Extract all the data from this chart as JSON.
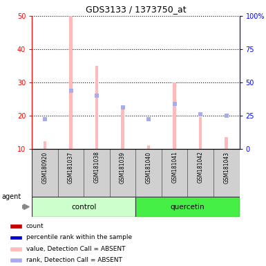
{
  "title": "GDS3133 / 1373750_at",
  "samples": [
    "GSM180920",
    "GSM181037",
    "GSM181038",
    "GSM181039",
    "GSM181040",
    "GSM181041",
    "GSM181042",
    "GSM181043"
  ],
  "groups": [
    "control",
    "control",
    "control",
    "control",
    "quercetin",
    "quercetin",
    "quercetin",
    "quercetin"
  ],
  "count_values": [
    12.3,
    50.0,
    35.0,
    22.0,
    11.0,
    30.0,
    19.5,
    13.5
  ],
  "rank_values": [
    19.0,
    27.5,
    26.0,
    22.5,
    19.0,
    23.5,
    20.5,
    20.0
  ],
  "ylim_left": [
    10,
    50
  ],
  "ylim_right": [
    0,
    100
  ],
  "yticks_left": [
    10,
    20,
    30,
    40,
    50
  ],
  "yticks_right": [
    0,
    25,
    50,
    75,
    100
  ],
  "ytick_labels_left": [
    "10",
    "20",
    "30",
    "40",
    "50"
  ],
  "ytick_labels_right": [
    "0",
    "25",
    "50",
    "75",
    "100%"
  ],
  "bar_color": "#ffbbbb",
  "rank_color": "#aaaaee",
  "control_color_light": "#ccffcc",
  "quercetin_color": "#44ee44",
  "group_label_control": "control",
  "group_label_quercetin": "quercetin",
  "agent_label": "agent",
  "legend_items": [
    {
      "color": "#cc0000",
      "marker": "s",
      "label": "count"
    },
    {
      "color": "#0000cc",
      "marker": "s",
      "label": "percentile rank within the sample"
    },
    {
      "color": "#ffbbbb",
      "marker": "s",
      "label": "value, Detection Call = ABSENT"
    },
    {
      "color": "#aaaaee",
      "marker": "s",
      "label": "rank, Detection Call = ABSENT"
    }
  ],
  "bar_bottom": 10,
  "bar_width": 0.12,
  "rank_marker_size": 5
}
